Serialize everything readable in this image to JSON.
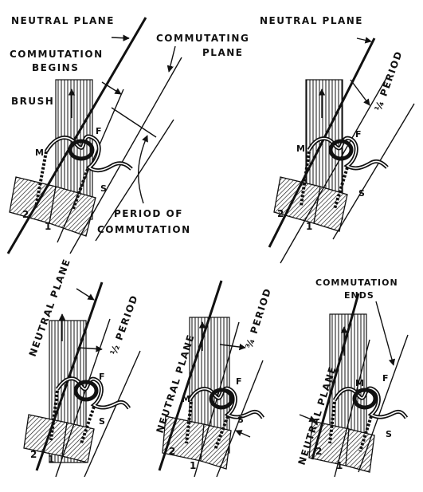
{
  "panels": [
    {
      "id": "panel-1",
      "labels": {
        "neutral_plane": "NEUTRAL PLANE",
        "commutating_plane_1": "COMMUTATING",
        "commutating_plane_2": "PLANE",
        "commutation_begins_1": "COMMUTATION",
        "commutation_begins_2": "BEGINS",
        "brush": "BRUSH",
        "period_1": "PERIOD OF",
        "period_2": "COMMUTATION",
        "coil_m": "M",
        "coil_f": "F",
        "coil_s": "S",
        "segment_2": "2",
        "segment_1": "1"
      }
    },
    {
      "id": "panel-2",
      "labels": {
        "neutral_plane": "NEUTRAL PLANE",
        "period": "¼ PERIOD",
        "coil_m": "M",
        "coil_f": "F",
        "coil_s": "S",
        "segment_2": "2",
        "segment_1": "1"
      }
    },
    {
      "id": "panel-3",
      "labels": {
        "neutral_plane": "NEUTRAL PLANE",
        "period": "½ PERIOD",
        "coil_f": "F",
        "coil_s": "S",
        "segment_2": "2",
        "segment_1": "1"
      }
    },
    {
      "id": "panel-4",
      "labels": {
        "neutral_plane": "NEUTRAL PLANE",
        "period": "¾ PERIOD",
        "coil_m": "M",
        "coil_f": "F",
        "coil_s": "S",
        "segment_2": "2",
        "segment_1": "1"
      }
    },
    {
      "id": "panel-5",
      "labels": {
        "neutral_plane": "NEUTRAL PLANE",
        "commutation_ends_1": "COMMUTATION",
        "commutation_ends_2": "ENDS",
        "coil_m": "M",
        "coil_f": "F",
        "coil_s": "S",
        "segment_2": "2",
        "segment_1": "1"
      }
    }
  ]
}
